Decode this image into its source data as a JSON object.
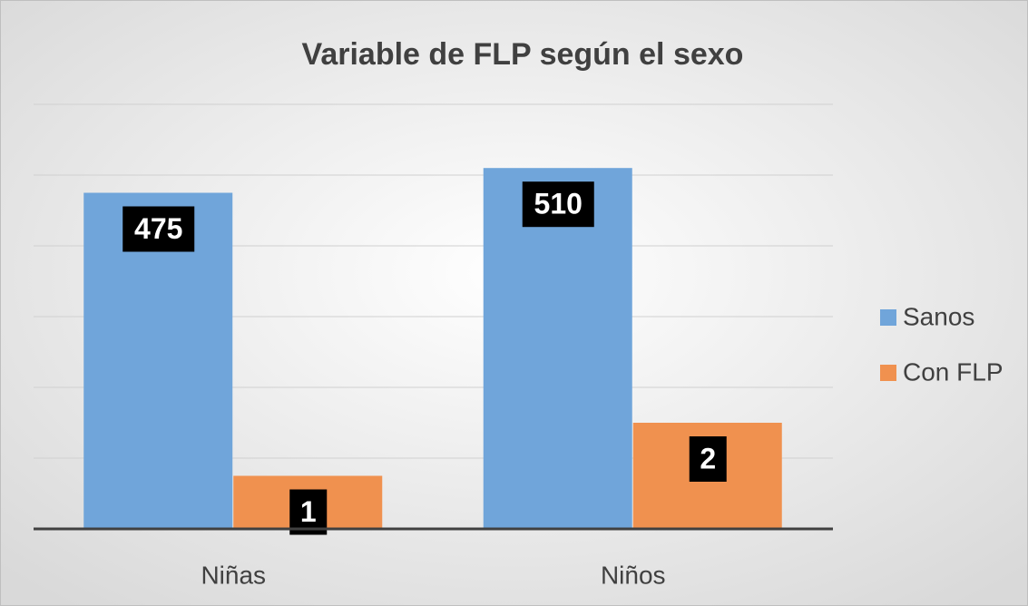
{
  "chart_data": {
    "type": "bar",
    "title": "Variable de FLP según el sexo",
    "categories": [
      "Niñas",
      "Niños"
    ],
    "series": [
      {
        "name": "Sanos",
        "color": "#70a5da",
        "values": [
          475,
          510
        ]
      },
      {
        "name": "Con FLP",
        "color": "#f0914f",
        "values": [
          1,
          2
        ],
        "axis": "y2"
      }
    ],
    "ylim": [
      0,
      600
    ],
    "yticks": [
      0,
      100,
      200,
      300,
      400,
      500,
      600
    ],
    "y2lim": [
      0,
      8
    ],
    "grid": true,
    "legend": "right"
  }
}
